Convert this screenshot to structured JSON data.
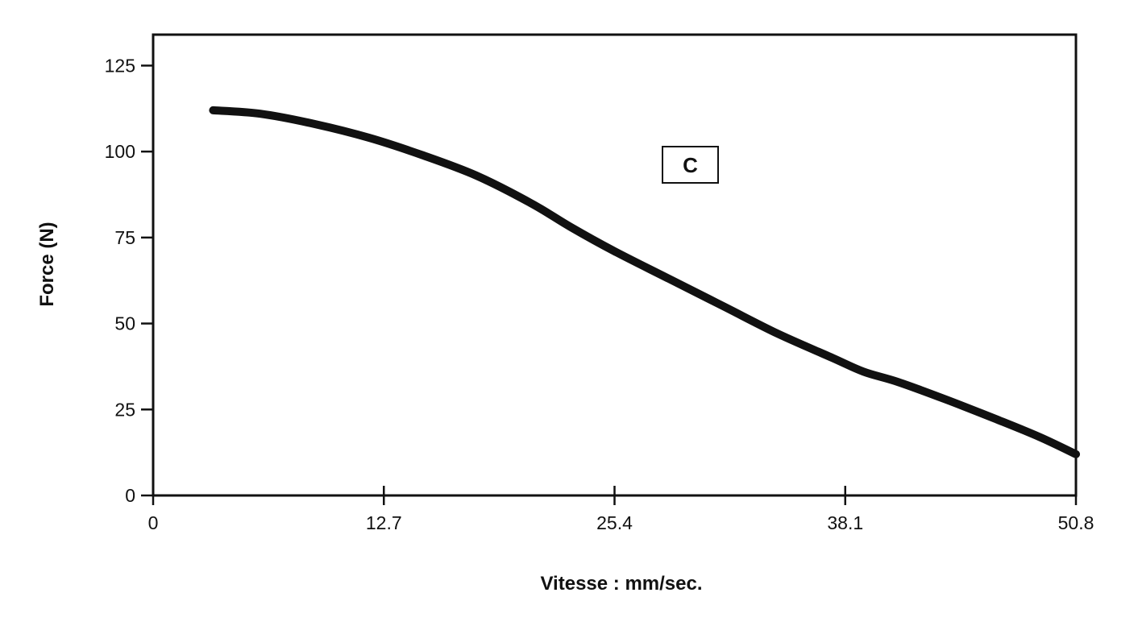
{
  "chart_data": {
    "type": "line",
    "title": "",
    "xlabel": "Vitesse : mm/sec.",
    "ylabel": "Force (N)",
    "xlim": [
      0,
      50.8
    ],
    "ylim": [
      0,
      134
    ],
    "x_ticks": [
      "0",
      "12.7",
      "25.4",
      "38.1",
      "50.8"
    ],
    "y_ticks": [
      "0",
      "25",
      "50",
      "75",
      "100",
      "125"
    ],
    "grid": false,
    "legend": "none",
    "annotation": "C",
    "line_color": "#111111",
    "series": [
      {
        "x": [
          3.3,
          5.9,
          8.9,
          11.9,
          14.8,
          17.8,
          20.8,
          23.0,
          25.4,
          28.4,
          31.4,
          34.4,
          37.4,
          39.1,
          41.0,
          43.6,
          46.5,
          48.8,
          50.8
        ],
        "y": [
          112,
          111,
          108,
          104,
          99,
          93,
          85,
          78,
          71,
          63,
          55,
          47,
          40,
          36,
          33,
          28,
          22,
          17,
          12
        ]
      }
    ]
  }
}
